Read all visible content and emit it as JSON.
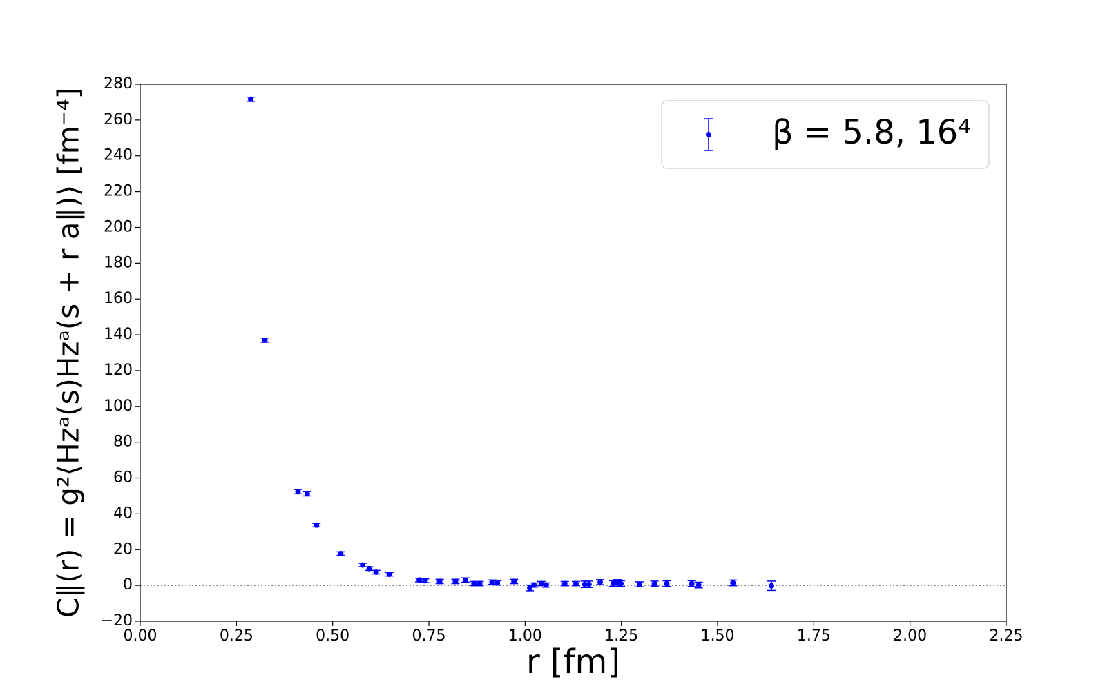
{
  "chart_data": {
    "type": "errorbar",
    "xlabel": "r [fm]",
    "ylabel": "C∥(r) = g²⟨Hzᵃ(s)Hzᵃ(s + r a∥)⟩ [fm⁻⁴]",
    "series": [
      {
        "name": "β = 5.8, 16⁴",
        "color": "#0000ff",
        "x": [
          0.287,
          0.324,
          0.41,
          0.434,
          0.458,
          0.521,
          0.578,
          0.595,
          0.613,
          0.647,
          0.725,
          0.74,
          0.778,
          0.819,
          0.845,
          0.867,
          0.882,
          0.914,
          0.928,
          0.971,
          1.012,
          1.023,
          1.042,
          1.055,
          1.103,
          1.132,
          1.155,
          1.166,
          1.195,
          1.229,
          1.24,
          1.249,
          1.297,
          1.336,
          1.368,
          1.433,
          1.451,
          1.54,
          1.64
        ],
        "values": [
          271.6,
          137,
          52.4,
          51.2,
          33.7,
          17.8,
          11.4,
          9.4,
          7.4,
          6.2,
          3.0,
          2.6,
          2.2,
          2.2,
          3.0,
          1.0,
          1.0,
          1.8,
          1.4,
          2.2,
          -1.4,
          0.2,
          1.0,
          0.2,
          1.0,
          1.0,
          0.6,
          0.6,
          1.8,
          1.0,
          1.4,
          1.0,
          0.6,
          1.0,
          1.0,
          1.0,
          0.2,
          1.4,
          -0.2
        ],
        "errors": [
          1.2,
          1.2,
          1.2,
          1.2,
          1.0,
          1.0,
          1.0,
          1.0,
          1.0,
          1.0,
          1.0,
          1.0,
          1.2,
          1.2,
          1.2,
          1.2,
          1.2,
          1.2,
          1.2,
          1.2,
          1.6,
          1.2,
          1.2,
          1.2,
          1.2,
          1.2,
          1.8,
          1.8,
          1.4,
          1.6,
          1.8,
          1.6,
          1.4,
          1.4,
          1.6,
          1.6,
          1.6,
          1.6,
          2.6
        ]
      }
    ],
    "xlim": [
      0,
      2.25
    ],
    "xticks": [
      {
        "value": 0,
        "label": "0.00"
      },
      {
        "value": 0.25,
        "label": "0.25"
      },
      {
        "value": 0.5,
        "label": "0.50"
      },
      {
        "value": 0.75,
        "label": "0.75"
      },
      {
        "value": 1,
        "label": "1.00"
      },
      {
        "value": 1.25,
        "label": "1.25"
      },
      {
        "value": 1.5,
        "label": "1.50"
      },
      {
        "value": 1.75,
        "label": "1.75"
      },
      {
        "value": 2,
        "label": "2.00"
      },
      {
        "value": 2.25,
        "label": "2.25"
      }
    ],
    "ylim": [
      -20,
      280
    ],
    "yticks": [
      {
        "value": -20,
        "label": "−20"
      },
      0,
      20,
      40,
      60,
      80,
      100,
      120,
      140,
      160,
      180,
      200,
      220,
      240,
      260,
      280
    ],
    "reference_line": 0,
    "legend": "upper right"
  }
}
